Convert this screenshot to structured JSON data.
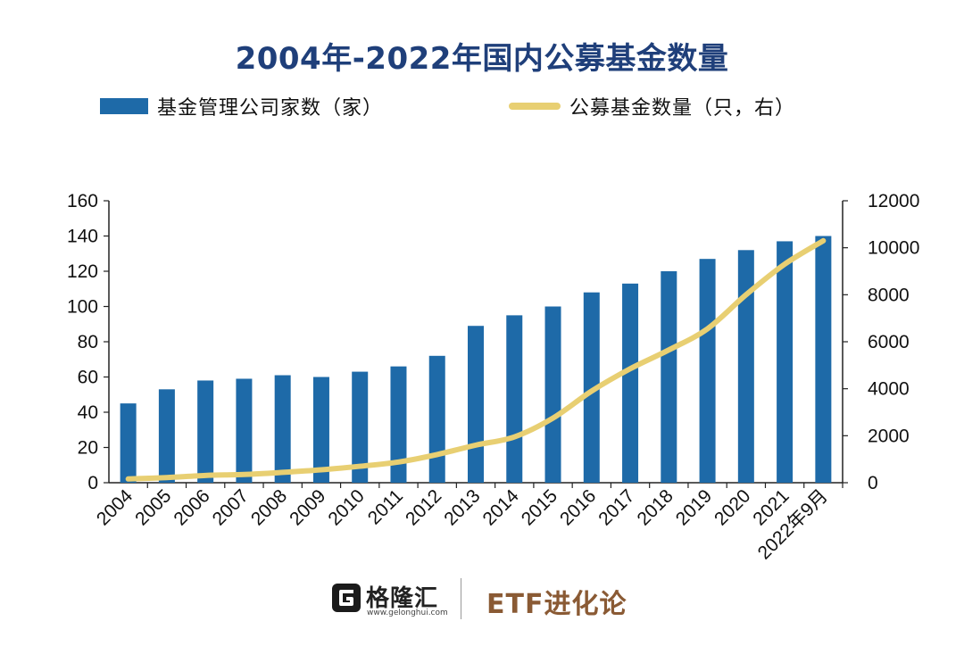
{
  "title": "2004年-2022年国内公募基金数量",
  "legend": {
    "bar_label": "基金管理公司家数（家）",
    "line_label": "公募基金数量（只，右）"
  },
  "colors": {
    "title": "#1f3f7a",
    "bar": "#1e6aa8",
    "line": "#e8cf72",
    "brand": "#8a5a34"
  },
  "chart_data": {
    "type": "bar",
    "title": "2004年-2022年国内公募基金数量",
    "categories": [
      "2004",
      "2005",
      "2006",
      "2007",
      "2008",
      "2009",
      "2010",
      "2011",
      "2012",
      "2013",
      "2014",
      "2015",
      "2016",
      "2017",
      "2018",
      "2019",
      "2020",
      "2021",
      "2022年9月"
    ],
    "series": [
      {
        "name": "基金管理公司家数（家）",
        "type": "bar",
        "axis": "left",
        "values": [
          45,
          53,
          58,
          59,
          61,
          60,
          63,
          66,
          72,
          89,
          95,
          100,
          108,
          113,
          120,
          127,
          132,
          137,
          140
        ]
      },
      {
        "name": "公募基金数量（只，右）",
        "type": "line",
        "axis": "right",
        "values": [
          160,
          220,
          310,
          350,
          440,
          550,
          700,
          880,
          1200,
          1600,
          1950,
          2750,
          3900,
          4850,
          5650,
          6550,
          8000,
          9300,
          10300
        ]
      }
    ],
    "ylim_left": [
      0,
      160
    ],
    "yticks_left": [
      "0",
      "20",
      "40",
      "60",
      "80",
      "100",
      "120",
      "140",
      "160"
    ],
    "ylim_right": [
      0,
      12000
    ],
    "yticks_right": [
      "0",
      "2000",
      "4000",
      "6000",
      "8000",
      "10000",
      "12000"
    ],
    "grid": false,
    "legend_position": "top"
  },
  "footer": {
    "logo_text": "格隆汇",
    "logo_sub": "www.gelonghui.com",
    "brand": "ETF进化论"
  }
}
